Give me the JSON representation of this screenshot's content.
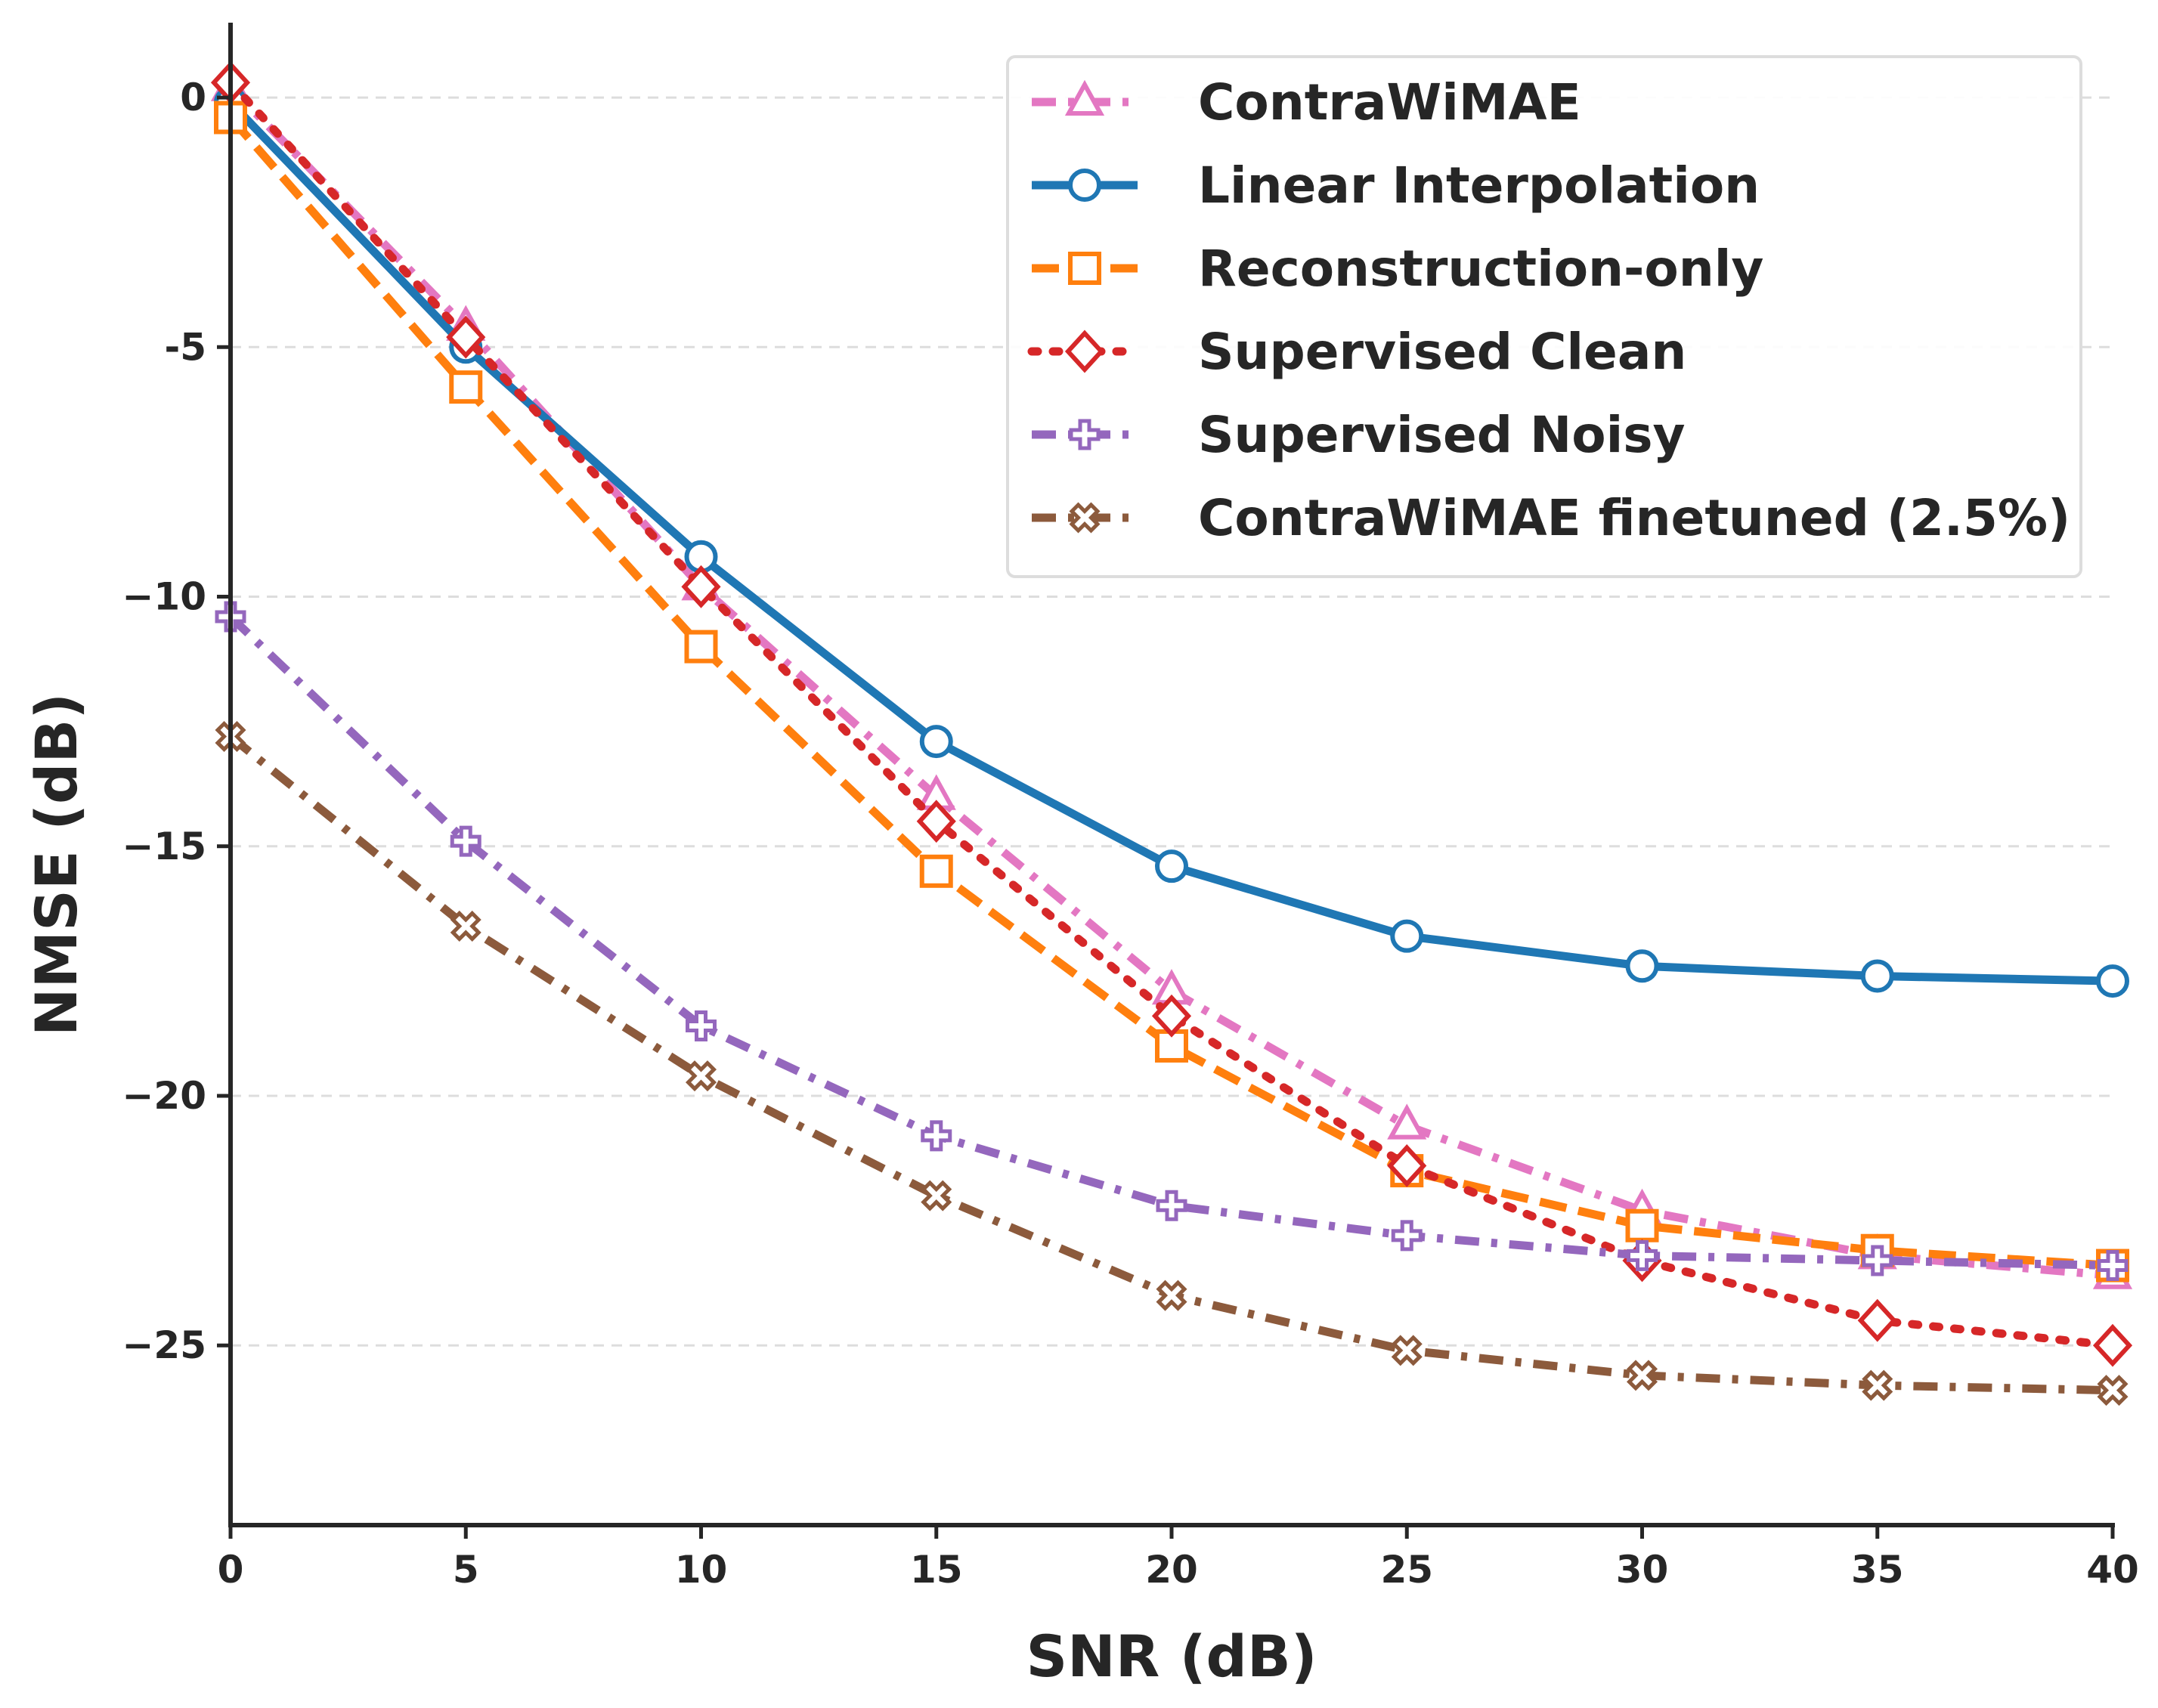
{
  "chart_data": {
    "type": "line",
    "title": "",
    "xlabel": "SNR (dB)",
    "ylabel": "NMSE (dB)",
    "xlim": [
      0,
      40
    ],
    "ylim": [
      -28.6,
      1.5
    ],
    "x_ticks": [
      0,
      5,
      10,
      15,
      20,
      25,
      30,
      35,
      40
    ],
    "x_tick_labels": [
      "0",
      "5",
      "10",
      "15",
      "20",
      "25",
      "30",
      "35",
      "40"
    ],
    "y_ticks": [
      0,
      -5,
      -10,
      -15,
      -20,
      -25
    ],
    "y_tick_labels": [
      "0",
      "-5",
      "−10",
      "−15",
      "−20",
      "−25"
    ],
    "grid": "horizontal dashed",
    "legend_position": "top-right",
    "x": [
      0,
      5,
      10,
      15,
      20,
      25,
      30,
      35,
      40
    ],
    "series": [
      {
        "name": "ContraWiMAE",
        "color": "#e377c2",
        "marker": "triangle",
        "dash": "dashdot",
        "values": [
          0.2,
          -4.6,
          -9.8,
          -14.0,
          -17.9,
          -20.6,
          -22.3,
          -23.2,
          -23.6
        ]
      },
      {
        "name": "Linear Interpolation",
        "color": "#1f77b4",
        "marker": "circle",
        "dash": "solid",
        "values": [
          -0.1,
          -5.0,
          -9.2,
          -12.9,
          -15.4,
          -16.8,
          -17.4,
          -17.6,
          -17.7
        ]
      },
      {
        "name": "Reconstruction-only",
        "color": "#ff7f0e",
        "marker": "square",
        "dash": "dashed",
        "values": [
          -0.4,
          -5.8,
          -11.0,
          -15.5,
          -19.0,
          -21.5,
          -22.6,
          -23.1,
          -23.4
        ]
      },
      {
        "name": "Supervised Clean",
        "color": "#d62728",
        "marker": "diamond",
        "dash": "dotted",
        "values": [
          0.3,
          -4.8,
          -9.8,
          -14.5,
          -18.4,
          -21.4,
          -23.3,
          -24.5,
          -25.0
        ]
      },
      {
        "name": "Supervised Noisy",
        "color": "#9467bd",
        "marker": "plus",
        "dash": "dashdot",
        "values": [
          -10.4,
          -14.9,
          -18.6,
          -20.8,
          -22.2,
          -22.8,
          -23.2,
          -23.3,
          -23.4
        ]
      },
      {
        "name": "ContraWiMAE finetuned (2.5%)",
        "color": "#8c5a3c",
        "marker": "x",
        "dash": "dashdot",
        "values": [
          -12.8,
          -16.6,
          -19.6,
          -22.0,
          -24.0,
          -25.1,
          -25.6,
          -25.8,
          -25.9
        ]
      }
    ]
  }
}
